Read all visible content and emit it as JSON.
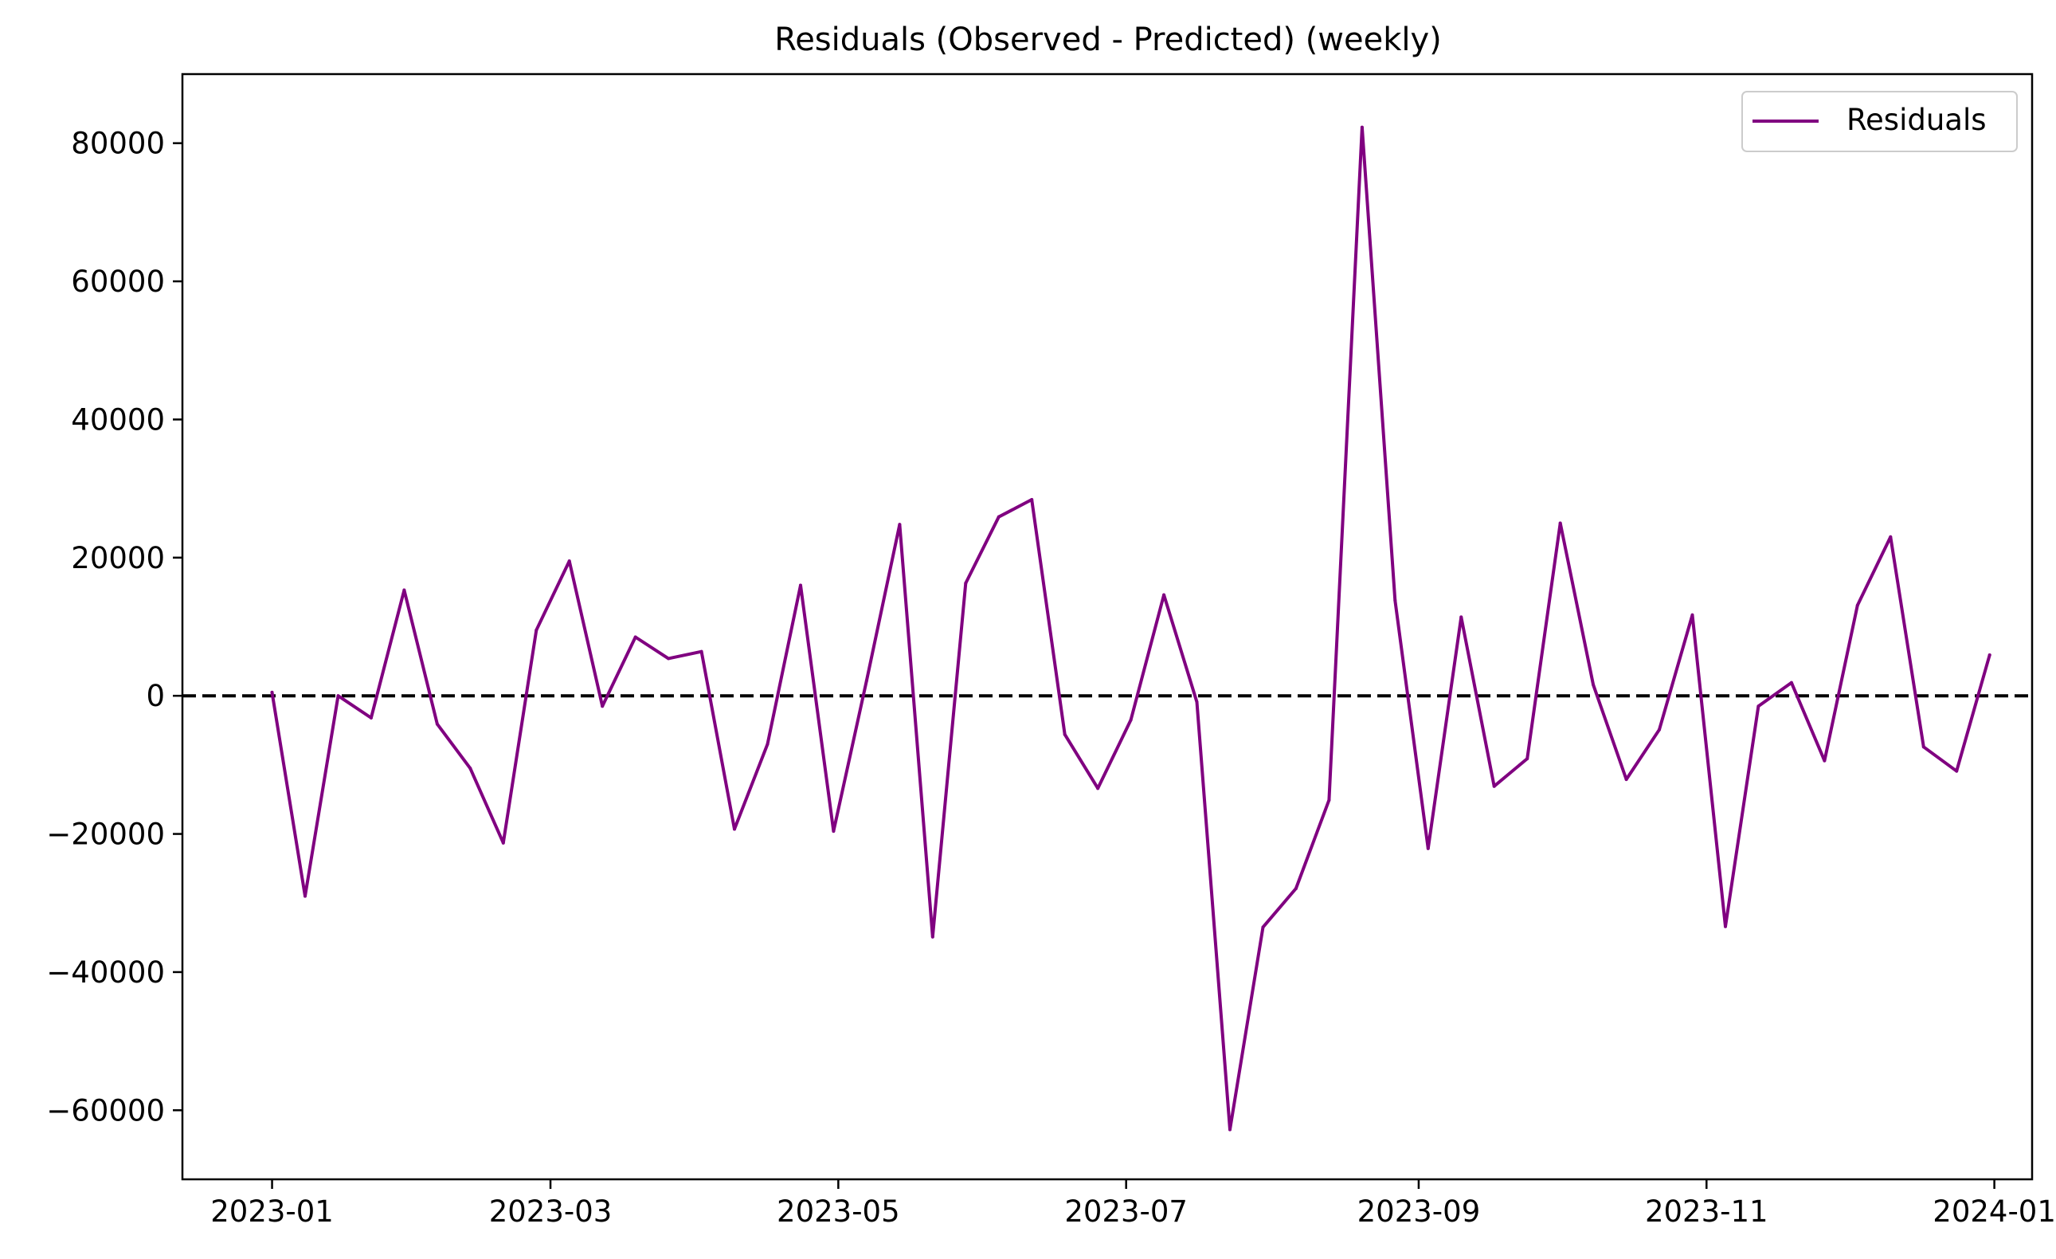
{
  "chart_data": {
    "type": "line",
    "title": "Residuals (Observed - Predicted) (weekly)",
    "xlabel": "",
    "ylabel": "",
    "xlim": [
      "2022-12-13",
      "2024-01-09"
    ],
    "ylim": [
      -70000,
      90000
    ],
    "x_ticks": [
      "2023-01",
      "2023-03",
      "2023-05",
      "2023-07",
      "2023-09",
      "2023-11",
      "2024-01"
    ],
    "y_ticks": [
      -60000,
      -40000,
      -20000,
      0,
      20000,
      40000,
      60000,
      80000
    ],
    "y_tick_labels": [
      "−60000",
      "−40000",
      "−20000",
      "0",
      "20000",
      "40000",
      "60000",
      "80000"
    ],
    "grid": false,
    "legend": {
      "position": "upper-right"
    },
    "reference_line": {
      "y": 0,
      "style": "dashed",
      "color": "#000000"
    },
    "colors": {
      "series": "#800080"
    },
    "x": [
      "2023-01-01",
      "2023-01-08",
      "2023-01-15",
      "2023-01-22",
      "2023-01-29",
      "2023-02-05",
      "2023-02-12",
      "2023-02-19",
      "2023-02-26",
      "2023-03-05",
      "2023-03-12",
      "2023-03-19",
      "2023-03-26",
      "2023-04-02",
      "2023-04-09",
      "2023-04-16",
      "2023-04-23",
      "2023-04-30",
      "2023-05-07",
      "2023-05-14",
      "2023-05-21",
      "2023-05-28",
      "2023-06-04",
      "2023-06-11",
      "2023-06-18",
      "2023-06-25",
      "2023-07-02",
      "2023-07-09",
      "2023-07-16",
      "2023-07-23",
      "2023-07-30",
      "2023-08-06",
      "2023-08-13",
      "2023-08-20",
      "2023-08-27",
      "2023-09-03",
      "2023-09-10",
      "2023-09-17",
      "2023-09-24",
      "2023-10-01",
      "2023-10-08",
      "2023-10-15",
      "2023-10-22",
      "2023-10-29",
      "2023-11-05",
      "2023-11-12",
      "2023-11-19",
      "2023-11-26",
      "2023-12-03",
      "2023-12-10",
      "2023-12-17",
      "2023-12-24",
      "2023-12-31"
    ],
    "series": [
      {
        "name": "Residuals",
        "values": [
          500,
          -29000,
          0,
          -3200,
          15300,
          -4100,
          -10500,
          -21300,
          9500,
          19500,
          -1500,
          8500,
          5400,
          6400,
          -19300,
          -7000,
          16000,
          -19600,
          2200,
          24800,
          -34900,
          16300,
          25900,
          28400,
          -5600,
          -13400,
          -3500,
          14600,
          -900,
          -62800,
          -33500,
          -27900,
          -15100,
          82300,
          13800,
          -22100,
          11400,
          -13100,
          -9100,
          25000,
          1600,
          -12100,
          -4900,
          11700,
          -33400,
          -1500,
          1900,
          -9400,
          13100,
          23000,
          -7400,
          -10900,
          5900
        ]
      }
    ]
  }
}
